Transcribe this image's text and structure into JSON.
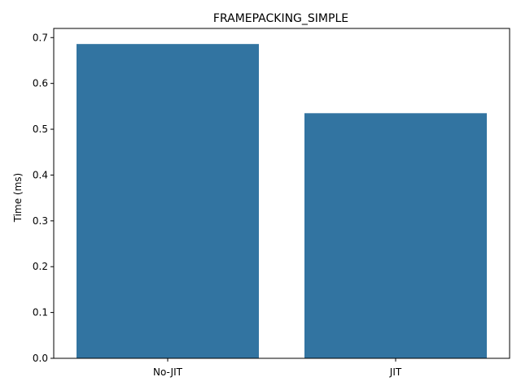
{
  "chart_data": {
    "type": "bar",
    "title": "FRAMEPACKING_SIMPLE",
    "xlabel": "",
    "ylabel": "Time (ms)",
    "categories": [
      "No-JIT",
      "JIT"
    ],
    "values": [
      0.686,
      0.535
    ],
    "ylim": [
      0,
      0.72
    ],
    "yticks": [
      0.0,
      0.1,
      0.2,
      0.3,
      0.4,
      0.5,
      0.6,
      0.7
    ],
    "ytick_labels": [
      "0.0",
      "0.1",
      "0.2",
      "0.3",
      "0.4",
      "0.5",
      "0.6",
      "0.7"
    ],
    "bar_color": "#3274a1",
    "grid": false,
    "legend": false
  }
}
